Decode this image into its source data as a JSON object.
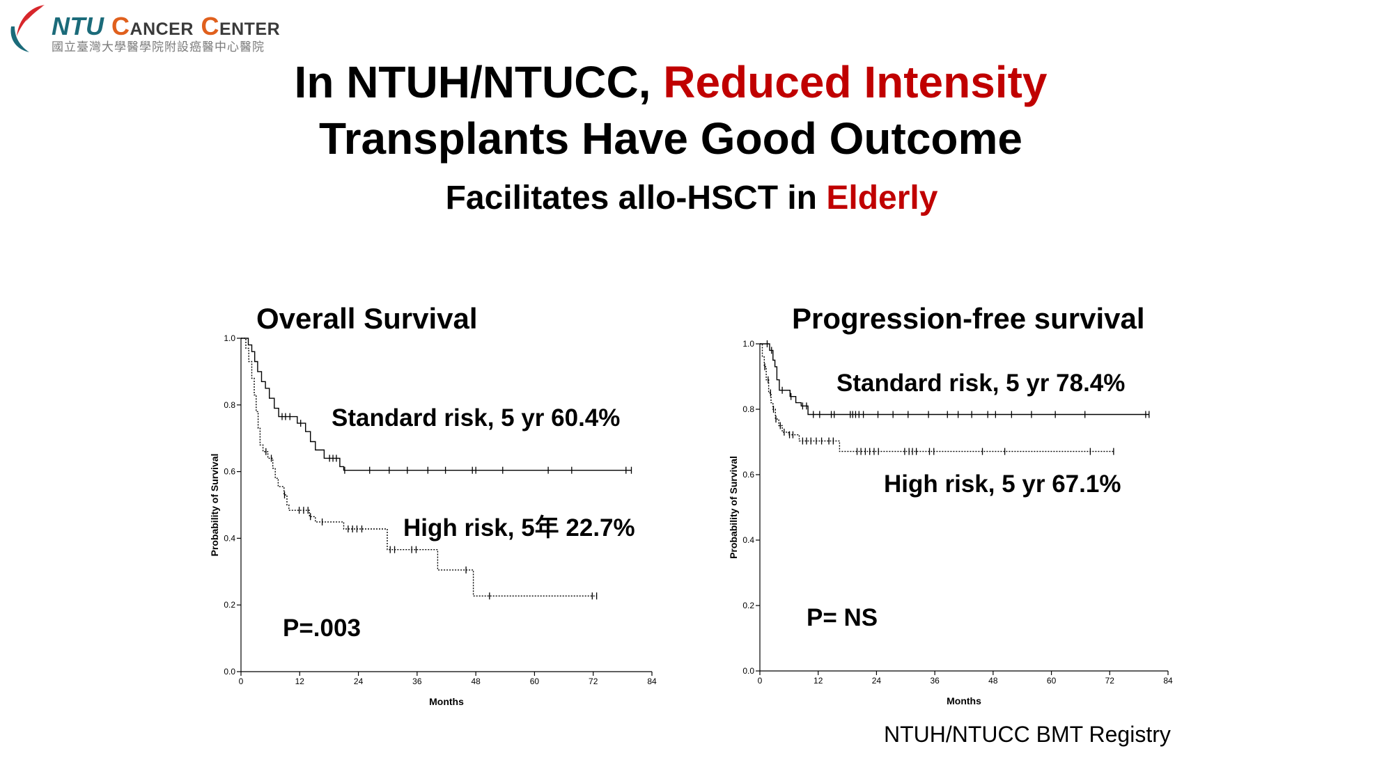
{
  "logo": {
    "name_ntu": "NTU",
    "name_cancer": "Cancer",
    "name_center": "Center",
    "subtitle_zh": "國立臺灣大學醫學院附設癌醫中心醫院",
    "colors": {
      "red": "#d7262b",
      "teal": "#1b6b7a",
      "orange": "#e0601d"
    }
  },
  "slide": {
    "title_line1_black": "In NTUH/NTUCC,",
    "title_line1_red": "Reduced Intensity",
    "title_line2": "Transplants Have Good Outcome",
    "subtitle_black": "Facilitates allo-HSCT in",
    "subtitle_red": "Elderly",
    "source": "NTUH/NTUCC BMT Registry",
    "accent_color": "#c00000"
  },
  "chart_data": [
    {
      "type": "line",
      "step": true,
      "title": "Overall Survival",
      "xlabel": "Months",
      "ylabel": "Probability of Survival",
      "xlim": [
        0,
        84
      ],
      "ylim": [
        0,
        1
      ],
      "xticks": [
        "0",
        "12",
        "24",
        "36",
        "48",
        "60",
        "72",
        "84"
      ],
      "yticks": [
        "0.0",
        "0.2",
        "0.4",
        "0.6",
        "0.8",
        "1.0"
      ],
      "grid": false,
      "p_value": "P=.003",
      "series": [
        {
          "line_style": "solid",
          "annotation": "Standard risk, 5 yr 60.4%",
          "steps": [
            [
              0,
              1.0
            ],
            [
              1.5,
              0.98
            ],
            [
              2.2,
              0.96
            ],
            [
              2.8,
              0.93
            ],
            [
              3.4,
              0.9
            ],
            [
              4.2,
              0.87
            ],
            [
              5.0,
              0.85
            ],
            [
              5.8,
              0.82
            ],
            [
              6.8,
              0.79
            ],
            [
              7.7,
              0.765
            ],
            [
              11.5,
              0.745
            ],
            [
              13.2,
              0.72
            ],
            [
              14.2,
              0.69
            ],
            [
              15.2,
              0.665
            ],
            [
              17.0,
              0.64
            ],
            [
              20.2,
              0.615
            ],
            [
              21.0,
              0.604
            ]
          ],
          "end_month": 79.8,
          "censored_months": [
            8.4,
            9.1,
            10.0,
            12.2,
            18.1,
            18.8,
            19.5,
            21.2,
            26.3,
            30.3,
            34.0,
            38.2,
            41.8,
            47.3,
            48.0,
            53.5,
            62.8,
            67.6,
            78.7,
            79.8
          ]
        },
        {
          "line_style": "dotted",
          "annotation": "High risk, 5年 22.7%",
          "steps": [
            [
              0,
              1.0
            ],
            [
              1.0,
              0.97
            ],
            [
              1.6,
              0.93
            ],
            [
              2.2,
              0.88
            ],
            [
              2.7,
              0.83
            ],
            [
              3.1,
              0.78
            ],
            [
              3.5,
              0.73
            ],
            [
              3.9,
              0.68
            ],
            [
              4.5,
              0.66
            ],
            [
              5.5,
              0.64
            ],
            [
              6.5,
              0.61
            ],
            [
              7.0,
              0.58
            ],
            [
              7.6,
              0.555
            ],
            [
              8.8,
              0.53
            ],
            [
              9.4,
              0.5
            ],
            [
              9.8,
              0.484
            ],
            [
              14.0,
              0.465
            ],
            [
              15.2,
              0.449
            ],
            [
              21.0,
              0.428
            ],
            [
              29.9,
              0.366
            ],
            [
              40.2,
              0.305
            ],
            [
              47.5,
              0.227
            ]
          ],
          "end_month": 72.7,
          "censored_months": [
            5.1,
            6.2,
            8.9,
            11.9,
            12.8,
            13.7,
            14.2,
            16.6,
            21.9,
            22.8,
            23.7,
            24.7,
            30.5,
            31.4,
            34.9,
            35.8,
            46.0,
            50.8,
            71.8,
            72.7
          ]
        }
      ]
    },
    {
      "type": "line",
      "step": true,
      "title": "Progression-free survival",
      "xlabel": "Months",
      "ylabel": "Probability of Survival",
      "xlim": [
        0,
        84
      ],
      "ylim": [
        0,
        1
      ],
      "xticks": [
        "0",
        "12",
        "24",
        "36",
        "48",
        "60",
        "72",
        "84"
      ],
      "yticks": [
        "0.0",
        "0.2",
        "0.4",
        "0.6",
        "0.8",
        "1.0"
      ],
      "grid": false,
      "p_value": "P= NS",
      "series": [
        {
          "line_style": "solid",
          "annotation": "Standard risk, 5 yr 78.4%",
          "steps": [
            [
              0,
              1.0
            ],
            [
              2.0,
              0.98
            ],
            [
              2.7,
              0.95
            ],
            [
              3.1,
              0.93
            ],
            [
              3.5,
              0.89
            ],
            [
              4.0,
              0.858
            ],
            [
              6.2,
              0.839
            ],
            [
              7.4,
              0.82
            ],
            [
              8.5,
              0.81
            ],
            [
              9.9,
              0.784
            ]
          ],
          "end_month": 80.1,
          "censored_months": [
            1.5,
            2.4,
            4.6,
            6.4,
            8.8,
            9.6,
            11.0,
            12.3,
            14.7,
            15.3,
            18.6,
            19.1,
            19.7,
            20.4,
            21.3,
            24.3,
            27.4,
            30.5,
            34.7,
            38.6,
            40.8,
            43.6,
            46.9,
            48.5,
            51.8,
            55.9,
            60.8,
            66.9,
            79.4,
            80.1
          ]
        },
        {
          "line_style": "dotted",
          "annotation": "High risk, 5 yr 67.1%",
          "steps": [
            [
              0,
              1.0
            ],
            [
              0.5,
              0.96
            ],
            [
              0.9,
              0.93
            ],
            [
              1.3,
              0.89
            ],
            [
              1.8,
              0.85
            ],
            [
              2.3,
              0.82
            ],
            [
              2.7,
              0.8
            ],
            [
              3.2,
              0.77
            ],
            [
              3.9,
              0.75
            ],
            [
              4.6,
              0.73
            ],
            [
              5.9,
              0.722
            ],
            [
              8.1,
              0.703
            ],
            [
              16.4,
              0.671
            ]
          ],
          "end_month": 72.8,
          "censored_months": [
            1.0,
            1.7,
            2.2,
            2.8,
            3.3,
            4.2,
            5.0,
            6.1,
            6.8,
            8.8,
            9.6,
            10.5,
            11.6,
            12.7,
            14.2,
            15.1,
            20.0,
            20.8,
            21.7,
            22.6,
            23.5,
            24.4,
            29.8,
            30.7,
            31.4,
            32.2,
            34.9,
            35.8,
            45.8,
            50.4,
            68.0,
            72.8
          ]
        }
      ]
    }
  ]
}
